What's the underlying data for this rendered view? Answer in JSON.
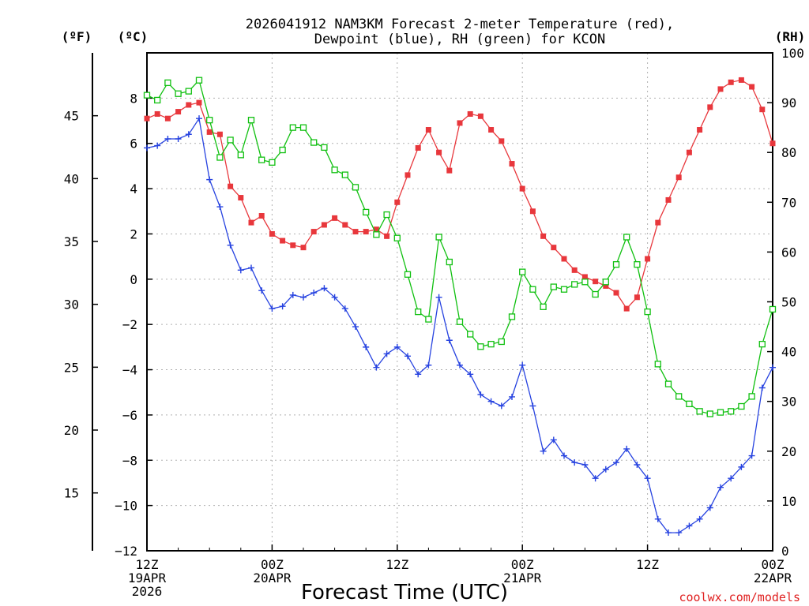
{
  "chart_data": {
    "type": "line",
    "title_line1": "2026041912 NAM3KM Forecast 2-meter Temperature (red),",
    "title_line2": "Dewpoint (blue), RH (green) for KCON",
    "xlabel": "Forecast Time (UTC)",
    "credit": "coolwx.com/models",
    "units": {
      "f": "(ºF)",
      "c": "(ºC)",
      "rh": "(RH)"
    },
    "x_range_hours": [
      0,
      60
    ],
    "y_celsius_range": [
      -12,
      10
    ],
    "y_rh_range": [
      0,
      100
    ],
    "x_ticks": [
      {
        "hour": 0,
        "lines": [
          "12Z",
          "19APR",
          "2026"
        ]
      },
      {
        "hour": 12,
        "lines": [
          "00Z",
          "20APR"
        ]
      },
      {
        "hour": 24,
        "lines": [
          "12Z"
        ]
      },
      {
        "hour": 36,
        "lines": [
          "00Z",
          "21APR"
        ]
      },
      {
        "hour": 48,
        "lines": [
          "12Z"
        ]
      },
      {
        "hour": 60,
        "lines": [
          "00Z",
          "22APR"
        ]
      }
    ],
    "celsius_ticks": [
      8,
      6,
      4,
      2,
      0,
      -2,
      -4,
      -6,
      -8,
      -10,
      -12
    ],
    "fahrenheit_ticks": [
      45,
      40,
      35,
      30,
      25,
      20,
      15
    ],
    "rh_ticks": [
      100,
      90,
      80,
      70,
      60,
      50,
      40,
      30,
      20,
      10,
      0
    ],
    "colors": {
      "temperature": "#e8373c",
      "dewpoint": "#2743e0",
      "rh": "#10c010"
    },
    "series": [
      {
        "name": "Temperature (°C)",
        "axis": "celsius",
        "values": [
          7.1,
          7.3,
          7.1,
          7.4,
          7.7,
          7.8,
          6.5,
          6.4,
          4.1,
          3.6,
          2.5,
          2.8,
          2.0,
          1.7,
          1.5,
          1.4,
          2.1,
          2.4,
          2.7,
          2.4,
          2.1,
          2.1,
          2.2,
          1.9,
          3.4,
          4.6,
          5.8,
          6.6,
          5.6,
          4.8,
          6.9,
          7.3,
          7.2,
          6.6,
          6.1,
          5.1,
          4.0,
          3.0,
          1.9,
          1.4,
          0.9,
          0.4,
          0.1,
          -0.1,
          -0.3,
          -0.6,
          -1.3,
          -0.8,
          0.9,
          2.5,
          3.5,
          4.5,
          5.6,
          6.6,
          7.6,
          8.4,
          8.7,
          8.8,
          8.5,
          7.5,
          6.0
        ]
      },
      {
        "name": "Dewpoint (°C)",
        "axis": "celsius",
        "values": [
          5.8,
          5.9,
          6.2,
          6.2,
          6.4,
          7.1,
          4.4,
          3.2,
          1.5,
          0.4,
          0.5,
          -0.5,
          -1.3,
          -1.2,
          -0.7,
          -0.8,
          -0.6,
          -0.4,
          -0.8,
          -1.3,
          -2.1,
          -3.0,
          -3.9,
          -3.3,
          -3.0,
          -3.4,
          -4.2,
          -3.8,
          -0.8,
          -2.7,
          -3.8,
          -4.2,
          -5.1,
          -5.4,
          -5.6,
          -5.2,
          -3.8,
          -5.6,
          -7.6,
          -7.1,
          -7.8,
          -8.1,
          -8.2,
          -8.8,
          -8.4,
          -8.1,
          -7.5,
          -8.2,
          -8.8,
          -10.6,
          -11.2,
          -11.2,
          -10.9,
          -10.6,
          -10.1,
          -9.2,
          -8.8,
          -8.3,
          -7.8,
          -4.8,
          -3.9
        ]
      },
      {
        "name": "RH (%)",
        "axis": "rh",
        "values": [
          91.5,
          90.5,
          94.0,
          91.8,
          92.3,
          94.5,
          86.5,
          79.0,
          82.5,
          79.5,
          86.5,
          78.5,
          78.0,
          80.5,
          85.0,
          85.0,
          82.0,
          81.0,
          76.5,
          75.5,
          73.0,
          68.0,
          63.5,
          67.5,
          62.8,
          55.5,
          48.0,
          46.5,
          63.0,
          58.0,
          46.0,
          43.5,
          41.0,
          41.5,
          42.0,
          47.0,
          56.0,
          52.5,
          49.0,
          53.0,
          52.5,
          53.5,
          54.0,
          51.5,
          54.0,
          57.5,
          63.0,
          57.5,
          48.0,
          37.5,
          33.5,
          31.0,
          29.5,
          28.0,
          27.5,
          27.8,
          28.0,
          29.0,
          31.0,
          41.5,
          48.5
        ]
      }
    ]
  }
}
